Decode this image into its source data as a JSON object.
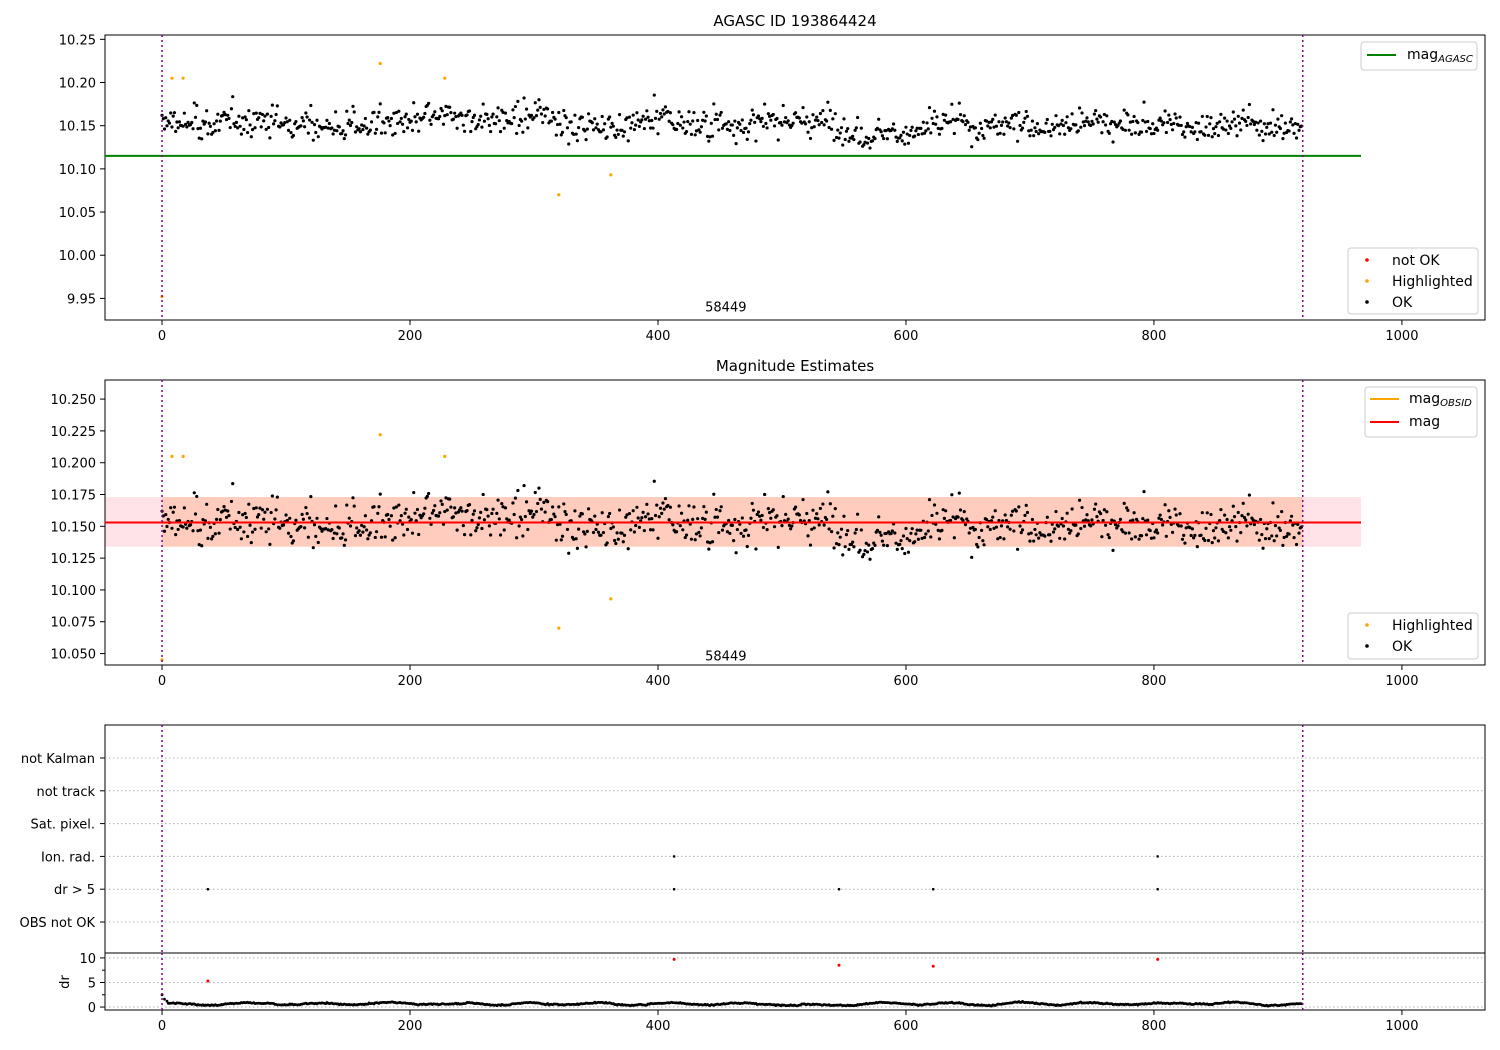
{
  "chart_data": [
    {
      "type": "scatter",
      "title": "AGASC ID 193864424",
      "xlim": [
        -46,
        1067
      ],
      "ylim": [
        9.925,
        10.255
      ],
      "xticks": [
        0,
        200,
        400,
        600,
        800,
        1000
      ],
      "yticks": [
        "9.95",
        "10.00",
        "10.05",
        "10.10",
        "10.15",
        "10.20",
        "10.25"
      ],
      "vlines": [
        0,
        920
      ],
      "annotation": {
        "text": "58449",
        "x": 459,
        "y": 9.93
      },
      "series": [
        {
          "name": "mag_AGASC",
          "type": "hline",
          "y": 10.115,
          "x": [
            -46,
            967
          ],
          "color": "#008000"
        },
        {
          "name": "not OK",
          "color": "#ff0000",
          "points": []
        },
        {
          "name": "Highlighted",
          "color": "#ffa500",
          "points": [
            [
              0,
              9.952
            ],
            [
              8,
              10.205
            ],
            [
              17,
              10.205
            ],
            [
              176,
              10.222
            ],
            [
              228,
              10.205
            ],
            [
              320,
              10.07
            ],
            [
              362,
              10.093
            ]
          ]
        },
        {
          "name": "OK",
          "color": "#000000",
          "note": "~920 points, mean 10.152, sd ~0.019",
          "mean": 10.152,
          "spread": 0.019
        }
      ],
      "legend_upper": [
        {
          "label": "mag",
          "sub": "AGASC",
          "kind": "line",
          "color": "#008000"
        }
      ],
      "legend_lower": [
        {
          "label": "not OK",
          "kind": "dot",
          "color": "#ff0000"
        },
        {
          "label": "Highlighted",
          "kind": "dot",
          "color": "#ffa500"
        },
        {
          "label": "OK",
          "kind": "dot",
          "color": "#000000"
        }
      ]
    },
    {
      "type": "scatter",
      "title": "Magnitude Estimates",
      "xlim": [
        -46,
        1067
      ],
      "ylim": [
        10.041,
        10.265
      ],
      "xticks": [
        0,
        200,
        400,
        600,
        800,
        1000
      ],
      "yticks": [
        "10.050",
        "10.075",
        "10.100",
        "10.125",
        "10.150",
        "10.175",
        "10.200",
        "10.225",
        "10.250"
      ],
      "vlines": [
        0,
        920
      ],
      "annotation": {
        "text": "58449",
        "x": 459,
        "y": 10.043
      },
      "bands": [
        {
          "y0": 10.134,
          "y1": 10.173,
          "x0": -46,
          "x1": 967,
          "color": "#ffc0cb"
        },
        {
          "y0": 10.134,
          "y1": 10.173,
          "x0": 0,
          "x1": 920,
          "color": "#ffa06e"
        }
      ],
      "series": [
        {
          "name": "mag_OBSID",
          "type": "hline",
          "y": 10.153,
          "x": [
            0,
            920
          ],
          "color": "#ffa500"
        },
        {
          "name": "mag",
          "type": "hline",
          "y": 10.153,
          "x": [
            -46,
            967
          ],
          "color": "#ff0000"
        },
        {
          "name": "Highlighted",
          "color": "#ffa500",
          "points": [
            [
              0,
              10.045
            ],
            [
              8,
              10.205
            ],
            [
              17,
              10.205
            ],
            [
              176,
              10.222
            ],
            [
              228,
              10.205
            ],
            [
              320,
              10.07
            ],
            [
              362,
              10.093
            ]
          ]
        },
        {
          "name": "OK",
          "color": "#000000",
          "mean": 10.152,
          "spread": 0.019
        }
      ],
      "legend_upper": [
        {
          "label": "mag",
          "sub": "OBSID",
          "kind": "line",
          "color": "#ffa500"
        },
        {
          "label": "mag",
          "sub": "",
          "kind": "line",
          "color": "#ff0000"
        }
      ],
      "legend_lower": [
        {
          "label": "Highlighted",
          "kind": "dot",
          "color": "#ffa500"
        },
        {
          "label": "OK",
          "kind": "dot",
          "color": "#000000"
        }
      ]
    },
    {
      "type": "scatter",
      "title": "",
      "xlim": [
        -46,
        1067
      ],
      "categories": [
        "OBS not OK",
        "dr > 5",
        "Ion. rad.",
        "Sat. pixel.",
        "not track",
        "not Kalman"
      ],
      "vlines": [
        0,
        920
      ],
      "flags": [
        {
          "category": "dr > 5",
          "x": [
            37,
            413,
            546,
            622,
            803
          ]
        },
        {
          "category": "Ion. rad.",
          "x": [
            413,
            803
          ]
        }
      ]
    },
    {
      "type": "scatter",
      "title": "",
      "ylabel": "dr",
      "xlim": [
        -46,
        1067
      ],
      "ylim": [
        -0.6,
        11.0
      ],
      "xticks": [
        0,
        200,
        400,
        600,
        800,
        1000
      ],
      "yticks": [
        "0",
        "5",
        "10"
      ],
      "vlines": [
        0,
        920
      ],
      "outliers": [
        [
          37,
          5.3
        ],
        [
          413,
          9.7
        ],
        [
          546,
          8.5
        ],
        [
          622,
          8.3
        ],
        [
          803,
          9.7
        ]
      ],
      "outlier_color": "#ff0000",
      "baseline": {
        "mean": 0.7,
        "spread": 0.35,
        "start": [
          [
            0,
            2.5
          ],
          [
            2,
            1.6
          ],
          [
            4,
            1.2
          ]
        ]
      }
    }
  ]
}
